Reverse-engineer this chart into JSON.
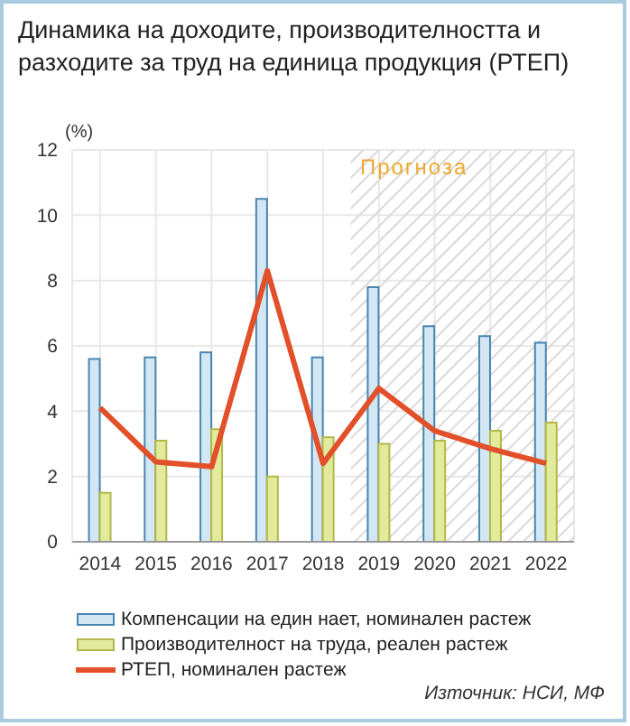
{
  "chart_data": {
    "type": "bar",
    "title": "Динамика на доходите, производителността и разходите за труд на единица продукция (РТЕП)",
    "ylabel": "(%)",
    "categories": [
      "2014",
      "2015",
      "2016",
      "2017",
      "2018",
      "2019",
      "2020",
      "2021",
      "2022"
    ],
    "series": [
      {
        "name": "Компенсации на един нает, номинален растеж",
        "color": "#d3e6f3",
        "values": [
          5.6,
          5.65,
          5.8,
          10.5,
          5.65,
          7.8,
          6.6,
          6.3,
          6.1
        ]
      },
      {
        "name": "Производителност на труда, реален растеж",
        "color": "#e2ea9c",
        "values": [
          1.5,
          3.1,
          3.45,
          2.0,
          3.2,
          3.0,
          3.1,
          3.4,
          3.65
        ]
      },
      {
        "name": "РТЕП, номинален растеж",
        "type": "line",
        "color": "#e2502a",
        "values": [
          4.1,
          2.45,
          2.3,
          8.3,
          2.4,
          4.7,
          3.4,
          2.85,
          2.4
        ]
      }
    ],
    "ylim": [
      0,
      12
    ],
    "yticks": [
      0,
      2,
      4,
      6,
      8,
      10,
      12
    ],
    "grid": true,
    "legend": "bottom",
    "bands": [
      {
        "axis": "x",
        "from": "2019",
        "to": "2022",
        "label": "Прогноза",
        "color": "#f0a830"
      }
    ],
    "annotations": [
      "Източник: НСИ, МФ"
    ]
  }
}
